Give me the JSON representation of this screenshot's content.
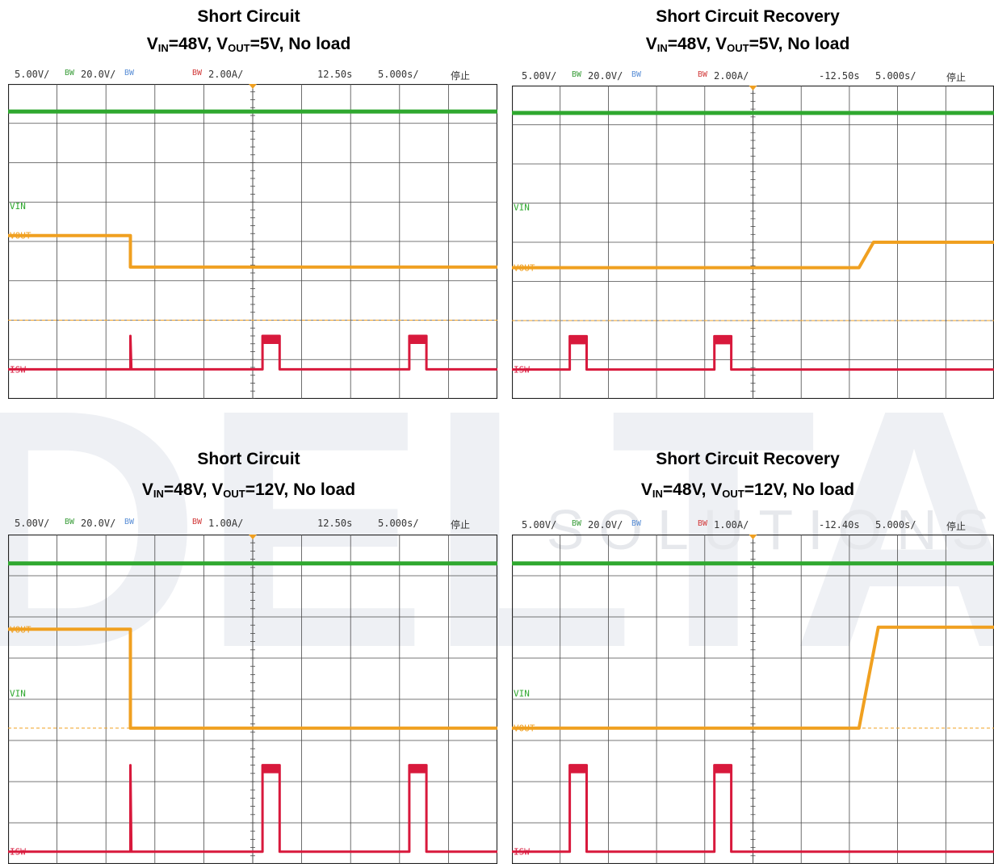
{
  "watermark": {
    "letters": "DELTA",
    "subtitle": "SOLUTIONS"
  },
  "panels": [
    {
      "id": "p1",
      "title": {
        "line1": "Short Circuit",
        "vin_label": "V",
        "vin_sub": "IN",
        "vin_rest": "=48V, ",
        "vout_label": "V",
        "vout_sub": "OUT",
        "vout_rest": "=5V, No load"
      },
      "status": {
        "ch1": "5.00V/",
        "bw": "BW",
        "ch2": "20.0V/",
        "bw3": "BW",
        "bw4": "BW",
        "ch4": "2.00A/",
        "delay": "12.50s",
        "timebase": "5.000s/",
        "state": "停止"
      }
    },
    {
      "id": "p2",
      "title": {
        "line1": "Short Circuit Recovery",
        "vin_label": "V",
        "vin_sub": "IN",
        "vin_rest": "=48V, ",
        "vout_label": "V",
        "vout_sub": "OUT",
        "vout_rest": "=5V, No load"
      },
      "status": {
        "ch1": "5.00V/",
        "bw": "BW",
        "ch2": "20.0V/",
        "bw3": "BW",
        "bw4": "BW",
        "ch4": "2.00A/",
        "delay": "-12.50s",
        "timebase": "5.000s/",
        "state": "停止"
      }
    },
    {
      "id": "p3",
      "title": {
        "line1": "Short Circuit",
        "vin_label": "V",
        "vin_sub": "IN",
        "vin_rest": "=48V, ",
        "vout_label": "V",
        "vout_sub": "OUT",
        "vout_rest": "=12V, No load"
      },
      "status": {
        "ch1": "5.00V/",
        "bw": "BW",
        "ch2": "20.0V/",
        "bw3": "BW",
        "bw4": "BW",
        "ch4": "1.00A/",
        "delay": "12.50s",
        "timebase": "5.000s/",
        "state": "停止"
      }
    },
    {
      "id": "p4",
      "title": {
        "line1": "Short Circuit Recovery",
        "vin_label": "V",
        "vin_sub": "IN",
        "vin_rest": "=48V, ",
        "vout_label": "V",
        "vout_sub": "OUT",
        "vout_rest": "=12V, No load"
      },
      "status": {
        "ch1": "5.00V/",
        "bw": "BW",
        "ch2": "20.0V/",
        "bw3": "BW",
        "bw4": "BW",
        "ch4": "1.00A/",
        "delay": "-12.40s",
        "timebase": "5.000s/",
        "state": "停止"
      }
    }
  ],
  "colors": {
    "vin": "#2fa82f",
    "vout": "#f0a020",
    "isw": "#d8193c",
    "grid": "#4a4a4a",
    "frame": "#222222",
    "watermark": "#eef0f4"
  },
  "chart_data": [
    {
      "type": "line",
      "title": "Short Circuit V_IN=48V, V_OUT=5V, No load",
      "x_divisions": 10,
      "y_divisions": 8,
      "time_per_div_s": 5.0,
      "markers": [
        "VIN",
        "VOUT",
        "ISW"
      ],
      "series": [
        {
          "name": "VIN",
          "x": [
            0,
            10
          ],
          "y": [
            7.3,
            7.3
          ]
        },
        {
          "name": "VOUT",
          "x": [
            0,
            2.5,
            2.5,
            10
          ],
          "y": [
            4.15,
            4.15,
            3.35,
            3.35
          ]
        },
        {
          "name": "ISW",
          "x": [
            0,
            2.5,
            2.5,
            2.52,
            5.2,
            5.2,
            5.55,
            5.55,
            8.2,
            8.2,
            8.55,
            8.55,
            10
          ],
          "y": [
            0.75,
            0.75,
            1.6,
            0.75,
            0.75,
            1.6,
            1.6,
            0.75,
            0.75,
            1.6,
            1.6,
            0.75,
            0.75
          ]
        }
      ]
    },
    {
      "type": "line",
      "title": "Short Circuit Recovery V_IN=48V, V_OUT=5V, No load",
      "x_divisions": 10,
      "y_divisions": 8,
      "time_per_div_s": 5.0,
      "markers": [
        "VIN",
        "VOUT",
        "ISW"
      ],
      "series": [
        {
          "name": "VIN",
          "x": [
            0,
            10
          ],
          "y": [
            7.3,
            7.3
          ]
        },
        {
          "name": "VOUT",
          "x": [
            0,
            7.2,
            7.5,
            10
          ],
          "y": [
            3.35,
            3.35,
            4.0,
            4.0
          ]
        },
        {
          "name": "ISW",
          "x": [
            0,
            1.2,
            1.2,
            1.55,
            1.55,
            4.2,
            4.2,
            4.55,
            4.55,
            10
          ],
          "y": [
            0.75,
            0.75,
            1.6,
            1.6,
            0.75,
            0.75,
            1.6,
            1.6,
            0.75,
            0.75
          ]
        }
      ]
    },
    {
      "type": "line",
      "title": "Short Circuit V_IN=48V, V_OUT=12V, No load",
      "x_divisions": 10,
      "y_divisions": 8,
      "time_per_div_s": 5.0,
      "markers": [
        "VIN",
        "VOUT",
        "ISW"
      ],
      "series": [
        {
          "name": "VIN",
          "x": [
            0,
            10
          ],
          "y": [
            7.3,
            7.3
          ]
        },
        {
          "name": "VOUT",
          "x": [
            0,
            2.5,
            2.5,
            10
          ],
          "y": [
            5.7,
            5.7,
            3.3,
            3.3
          ]
        },
        {
          "name": "ISW",
          "x": [
            0,
            2.5,
            2.5,
            2.52,
            5.2,
            5.2,
            5.55,
            5.55,
            8.2,
            8.2,
            8.55,
            8.55,
            10
          ],
          "y": [
            0.3,
            0.3,
            2.4,
            0.3,
            0.3,
            2.4,
            2.4,
            0.3,
            0.3,
            2.4,
            2.4,
            0.3,
            0.3
          ]
        }
      ]
    },
    {
      "type": "line",
      "title": "Short Circuit Recovery V_IN=48V, V_OUT=12V, No load",
      "x_divisions": 10,
      "y_divisions": 8,
      "time_per_div_s": 5.0,
      "markers": [
        "VIN",
        "VOUT",
        "ISW"
      ],
      "series": [
        {
          "name": "VIN",
          "x": [
            0,
            10
          ],
          "y": [
            7.3,
            7.3
          ]
        },
        {
          "name": "VOUT",
          "x": [
            0,
            7.2,
            7.6,
            10
          ],
          "y": [
            3.3,
            3.3,
            5.75,
            5.75
          ]
        },
        {
          "name": "ISW",
          "x": [
            0,
            1.2,
            1.2,
            1.55,
            1.55,
            4.2,
            4.2,
            4.55,
            4.55,
            10
          ],
          "y": [
            0.3,
            0.3,
            2.4,
            2.4,
            0.3,
            0.3,
            2.4,
            2.4,
            0.3,
            0.3
          ]
        }
      ]
    }
  ]
}
